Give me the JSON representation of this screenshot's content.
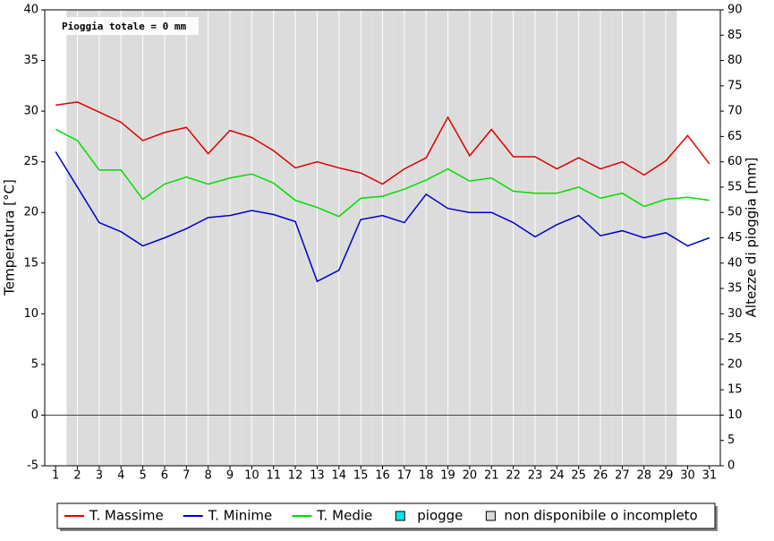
{
  "chart_data": {
    "type": "line",
    "annotation": "Pioggia totale = 0 mm",
    "y_label": "Temperatura [°C]",
    "y2_label": "Altezze di pioggia [mm]",
    "x": [
      1,
      2,
      3,
      4,
      5,
      6,
      7,
      8,
      9,
      10,
      11,
      12,
      13,
      14,
      15,
      16,
      17,
      18,
      19,
      20,
      21,
      22,
      23,
      24,
      25,
      26,
      27,
      28,
      29,
      30,
      31
    ],
    "xlim": [
      0.5,
      31.5
    ],
    "xticks": [
      1,
      2,
      3,
      4,
      5,
      6,
      7,
      8,
      9,
      10,
      11,
      12,
      13,
      14,
      15,
      16,
      17,
      18,
      19,
      20,
      21,
      22,
      23,
      24,
      25,
      26,
      27,
      28,
      29,
      30,
      31
    ],
    "ylim": [
      -5,
      40
    ],
    "yticks": [
      -5,
      0,
      5,
      10,
      15,
      20,
      25,
      30,
      35,
      40
    ],
    "y2lim": [
      0,
      90
    ],
    "y2ticks": [
      0,
      5,
      10,
      15,
      20,
      25,
      30,
      35,
      40,
      45,
      50,
      55,
      60,
      65,
      70,
      75,
      80,
      85,
      90
    ],
    "series": [
      {
        "name": "T. Massime",
        "color": "#dd0000",
        "values": [
          30.6,
          30.9,
          29.9,
          28.9,
          27.1,
          27.9,
          28.4,
          25.8,
          28.1,
          27.4,
          26.1,
          24.4,
          25.0,
          24.4,
          23.9,
          22.8,
          24.3,
          25.4,
          29.4,
          25.6,
          28.2,
          25.5,
          25.5,
          24.3,
          25.4,
          24.3,
          25.0,
          23.7,
          25.1,
          27.6,
          24.8
        ]
      },
      {
        "name": "T. Minime",
        "color": "#0000cc",
        "values": [
          26.0,
          22.5,
          19.0,
          18.1,
          16.7,
          17.5,
          18.4,
          19.5,
          19.7,
          20.2,
          19.8,
          19.1,
          13.2,
          14.3,
          19.3,
          19.7,
          19.0,
          21.8,
          20.4,
          20.0,
          20.0,
          19.0,
          17.6,
          18.8,
          19.7,
          17.7,
          18.2,
          17.5,
          18.0,
          16.7,
          17.5
        ]
      },
      {
        "name": "T. Medie",
        "color": "#00dd00",
        "values": [
          28.2,
          27.1,
          24.2,
          24.2,
          21.3,
          22.8,
          23.5,
          22.8,
          23.4,
          23.8,
          22.9,
          21.2,
          20.5,
          19.6,
          21.4,
          21.6,
          22.3,
          23.2,
          24.3,
          23.1,
          23.4,
          22.1,
          21.9,
          21.9,
          22.5,
          21.4,
          21.9,
          20.6,
          21.3,
          21.5,
          21.2
        ]
      },
      {
        "name": "piogge",
        "color": "#00e5ee",
        "axis": "y2",
        "kind": "bar",
        "values": [
          0,
          0,
          0,
          0,
          0,
          0,
          0,
          0,
          0,
          0,
          0,
          0,
          0,
          0,
          0,
          0,
          0,
          0,
          0,
          0,
          0,
          0,
          0,
          0,
          0,
          0,
          0,
          0,
          0,
          0,
          0
        ]
      }
    ],
    "unavailable": {
      "name": "non disponibile o incompleto",
      "color": "#dcdcdc",
      "days": [
        2,
        3,
        4,
        5,
        6,
        7,
        8,
        9,
        10,
        11,
        12,
        13,
        14,
        15,
        16,
        17,
        18,
        19,
        20,
        21,
        22,
        23,
        24,
        25,
        26,
        27,
        28,
        29
      ]
    }
  }
}
